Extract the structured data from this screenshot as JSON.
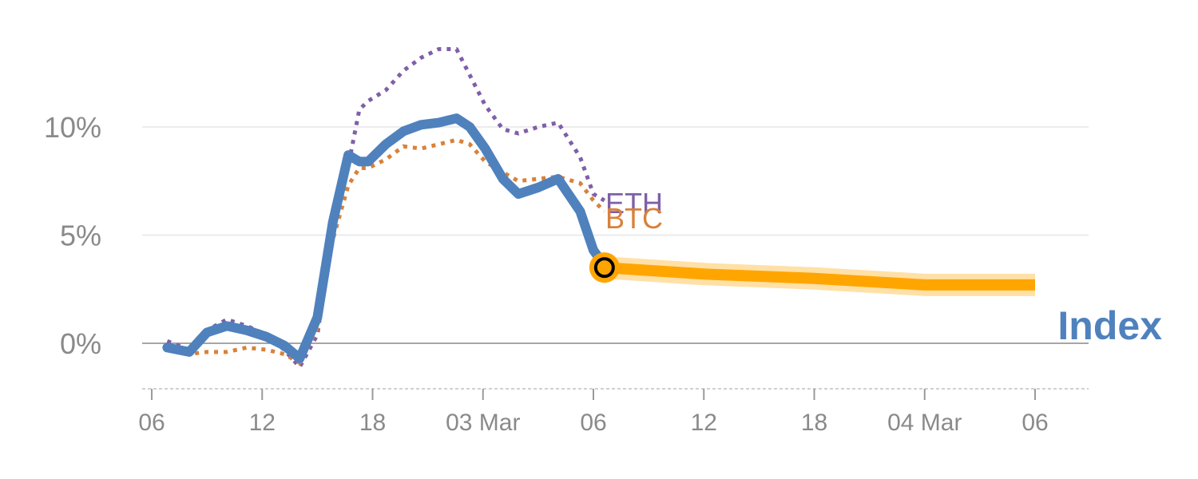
{
  "chart_data": {
    "type": "line",
    "title": "",
    "xlabel": "",
    "ylabel": "",
    "ylim": [
      -2,
      15
    ],
    "y_ticks": [
      {
        "value": 0,
        "label": "0%"
      },
      {
        "value": 5,
        "label": "5%"
      },
      {
        "value": 10,
        "label": "10%"
      }
    ],
    "x_domain": [
      0,
      40
    ],
    "x_ticks": [
      {
        "x": 0,
        "label": "06"
      },
      {
        "x": 5,
        "label": "12"
      },
      {
        "x": 10,
        "label": "18"
      },
      {
        "x": 15,
        "label": "03 Mar"
      },
      {
        "x": 20,
        "label": "06"
      },
      {
        "x": 25,
        "label": "12"
      },
      {
        "x": 30,
        "label": "18"
      },
      {
        "x": 35,
        "label": "04 Mar"
      },
      {
        "x": 40,
        "label": "06"
      }
    ],
    "series": [
      {
        "name": "Index",
        "label": "Index",
        "color": "#4f81bd",
        "style": "solid",
        "x": [
          0.7,
          1.7,
          2.5,
          3.4,
          4.3,
          5.2,
          6,
          6.7,
          7.5,
          8.2,
          8.9,
          9.4,
          9.8,
          10.6,
          11.4,
          12.2,
          13.0,
          13.8,
          14.4,
          15.1,
          15.9,
          16.6,
          17.5,
          18.4,
          19.4,
          20,
          20.5
        ],
        "values": [
          -0.2,
          -0.4,
          0.5,
          0.8,
          0.6,
          0.3,
          -0.1,
          -0.7,
          1.2,
          5.6,
          8.7,
          8.4,
          8.4,
          9.2,
          9.8,
          10.1,
          10.2,
          10.4,
          10.0,
          9.0,
          7.6,
          6.9,
          7.2,
          7.6,
          6.1,
          4.3,
          3.6
        ]
      },
      {
        "name": "BTC",
        "label": "BTC",
        "color": "#d9813a",
        "style": "dotted",
        "x": [
          0.7,
          1.7,
          2.5,
          3.4,
          4.3,
          5.2,
          6,
          6.7,
          7.5,
          8.2,
          8.9,
          9.4,
          9.8,
          10.6,
          11.4,
          12.2,
          13.0,
          13.8,
          14.4,
          15.1,
          15.9,
          16.6,
          17.5,
          18.4,
          19.4,
          20,
          20.5
        ],
        "values": [
          -0.2,
          -0.5,
          -0.4,
          -0.4,
          -0.2,
          -0.3,
          -0.5,
          -0.9,
          0.7,
          4.8,
          7.3,
          8.1,
          8.1,
          8.5,
          9.1,
          9.0,
          9.2,
          9.4,
          9.2,
          8.4,
          7.9,
          7.5,
          7.6,
          7.7,
          7.4,
          6.6,
          6.1
        ]
      },
      {
        "name": "ETH",
        "label": "ETH",
        "color": "#7f5fa8",
        "style": "dotted",
        "x": [
          0.7,
          1.7,
          2.5,
          3.4,
          4.3,
          5.2,
          6,
          6.7,
          7.5,
          8.2,
          8.9,
          9.4,
          9.8,
          10.6,
          11.4,
          12.2,
          13.0,
          13.8,
          14.4,
          15.1,
          15.9,
          16.6,
          17.5,
          18.4,
          19.4,
          20,
          20.5
        ],
        "values": [
          0.1,
          -0.3,
          0.6,
          1.1,
          0.8,
          0.4,
          -0.3,
          -1.1,
          0.4,
          5.2,
          8.2,
          10.8,
          11.2,
          11.7,
          12.6,
          13.2,
          13.6,
          13.6,
          12.4,
          11.0,
          9.9,
          9.7,
          10.0,
          10.2,
          8.6,
          6.9,
          6.6
        ]
      }
    ],
    "forecast": {
      "color": "#ffa500",
      "x": [
        20.5,
        25,
        30,
        35,
        40
      ],
      "values": [
        3.5,
        3.2,
        3.0,
        2.7,
        2.7
      ]
    },
    "marker": {
      "x": 20.5,
      "value": 3.5
    }
  }
}
